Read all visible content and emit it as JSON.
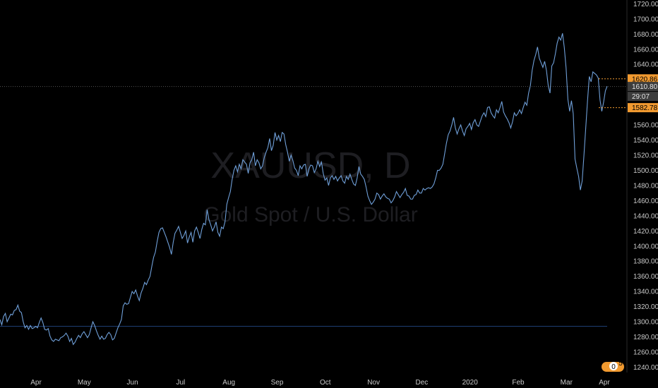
{
  "chart_data": {
    "type": "line",
    "watermark_symbol": "XAUUSD, D",
    "watermark_description": "Gold Spot / U.S. Dollar",
    "x_labels": [
      "Apr",
      "May",
      "Jun",
      "Jul",
      "Aug",
      "Sep",
      "Oct",
      "Nov",
      "Dec",
      "2020",
      "Feb",
      "Mar",
      "Apr"
    ],
    "y_ticks": [
      1240,
      1260,
      1280,
      1300,
      1320,
      1340,
      1360,
      1380,
      1400,
      1420,
      1440,
      1460,
      1480,
      1500,
      1520,
      1540,
      1560,
      1580,
      1600,
      1620,
      1640,
      1660,
      1680,
      1700,
      1720
    ],
    "ylim": [
      1233,
      1725
    ],
    "series": [
      {
        "color": "#6f9fd8",
        "values": [
          1303,
          1296,
          1307,
          1311,
          1300,
          1305,
          1310,
          1309,
          1315,
          1316,
          1322,
          1314,
          1312,
          1300,
          1292,
          1295,
          1290,
          1295,
          1291,
          1292,
          1294,
          1292,
          1299,
          1305,
          1299,
          1290,
          1289,
          1291,
          1281,
          1276,
          1274,
          1277,
          1276,
          1275,
          1279,
          1280,
          1282,
          1285,
          1281,
          1274,
          1278,
          1270,
          1273,
          1278,
          1282,
          1279,
          1284,
          1287,
          1283,
          1279,
          1283,
          1292,
          1300,
          1295,
          1288,
          1282,
          1277,
          1281,
          1277,
          1278,
          1283,
          1286,
          1283,
          1276,
          1278,
          1285,
          1292,
          1297,
          1303,
          1321,
          1325,
          1323,
          1324,
          1332,
          1340,
          1337,
          1342,
          1334,
          1328,
          1338,
          1344,
          1352,
          1349,
          1355,
          1360,
          1373,
          1385,
          1392,
          1406,
          1418,
          1423,
          1424,
          1418,
          1412,
          1405,
          1398,
          1389,
          1405,
          1417,
          1421,
          1426,
          1418,
          1410,
          1414,
          1420,
          1404,
          1412,
          1418,
          1405,
          1420,
          1425,
          1418,
          1410,
          1422,
          1430,
          1428,
          1448,
          1435,
          1428,
          1420,
          1425,
          1432,
          1418,
          1413,
          1425,
          1423,
          1432,
          1455,
          1464,
          1472,
          1488,
          1500,
          1506,
          1498,
          1508,
          1502,
          1514,
          1511,
          1508,
          1496,
          1510,
          1514,
          1524,
          1506,
          1514,
          1510,
          1502,
          1506,
          1517,
          1524,
          1530,
          1542,
          1526,
          1533,
          1550,
          1540,
          1546,
          1538,
          1550,
          1548,
          1534,
          1524,
          1512,
          1520,
          1513,
          1503,
          1500,
          1493,
          1506,
          1502,
          1507,
          1508,
          1492,
          1502,
          1507,
          1506,
          1497,
          1502,
          1512,
          1505,
          1511,
          1496,
          1487,
          1490,
          1480,
          1490,
          1493,
          1488,
          1492,
          1486,
          1490,
          1493,
          1486,
          1483,
          1492,
          1488,
          1495,
          1488,
          1482,
          1480,
          1490,
          1505,
          1495,
          1492,
          1488,
          1478,
          1466,
          1460,
          1455,
          1458,
          1462,
          1470,
          1468,
          1462,
          1466,
          1469,
          1465,
          1463,
          1462,
          1457,
          1460,
          1465,
          1472,
          1468,
          1464,
          1468,
          1471,
          1476,
          1467,
          1466,
          1462,
          1462,
          1467,
          1468,
          1474,
          1470,
          1470,
          1476,
          1474,
          1476,
          1477,
          1476,
          1478,
          1482,
          1490,
          1500,
          1500,
          1503,
          1508,
          1522,
          1536,
          1547,
          1552,
          1560,
          1570,
          1556,
          1548,
          1555,
          1560,
          1552,
          1546,
          1555,
          1558,
          1562,
          1554,
          1563,
          1567,
          1560,
          1558,
          1565,
          1572,
          1576,
          1571,
          1583,
          1584,
          1576,
          1572,
          1569,
          1580,
          1576,
          1583,
          1591,
          1577,
          1572,
          1568,
          1563,
          1556,
          1564,
          1576,
          1572,
          1575,
          1580,
          1575,
          1583,
          1590,
          1586,
          1602,
          1612,
          1632,
          1645,
          1653,
          1663,
          1648,
          1642,
          1636,
          1644,
          1632,
          1612,
          1602,
          1638,
          1642,
          1654,
          1668,
          1676,
          1672,
          1681,
          1662,
          1635,
          1594,
          1578,
          1592,
          1575,
          1515,
          1503,
          1492,
          1474,
          1486,
          1520,
          1556,
          1592,
          1624,
          1617,
          1630,
          1628,
          1626,
          1622,
          1593,
          1578,
          1590,
          1605,
          1611
        ]
      }
    ],
    "reference_line": {
      "value": 1294,
      "color": "#1f3e73"
    },
    "price_tags": [
      {
        "label": "1620.86",
        "value": 1620.86,
        "color": "#f19a30"
      },
      {
        "label": "1610.80",
        "value": 1610.8,
        "color": "#3c3c3c"
      },
      {
        "label": "29:07",
        "value": 1600,
        "color": "#3c3c3c"
      },
      {
        "label": "1582.78",
        "value": 1582.78,
        "color": "#f19a30"
      }
    ],
    "legend": "none",
    "grid": false
  },
  "widget": {
    "label": "0",
    "badge": "5"
  }
}
